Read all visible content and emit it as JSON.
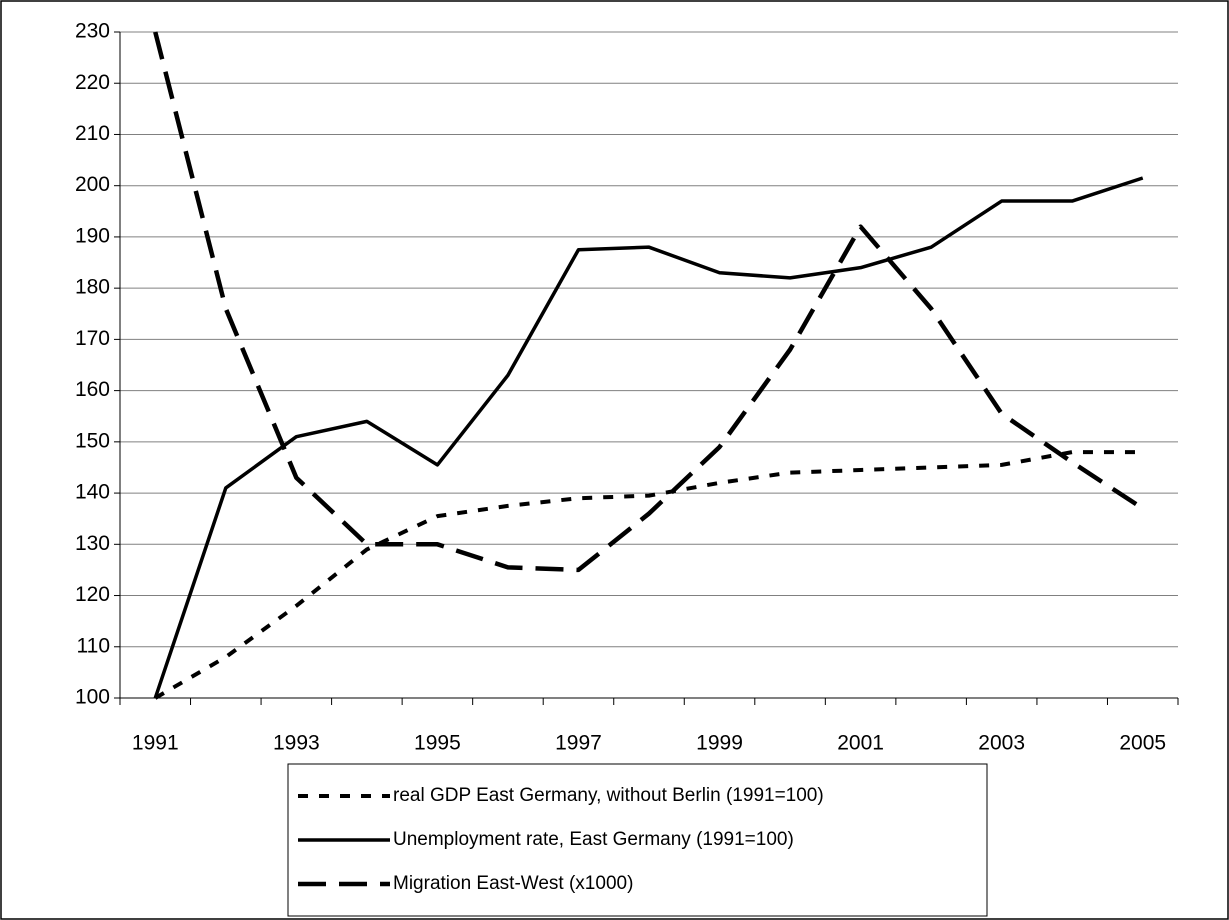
{
  "chart_data": {
    "type": "line",
    "categories": [
      "1991",
      null,
      "1993",
      null,
      "1995",
      null,
      "1997",
      null,
      "1999",
      null,
      "2001",
      null,
      "2003",
      null,
      "2005"
    ],
    "series": [
      {
        "name": "real GDP East Germany, without Berlin (1991=100)",
        "color": "#000000",
        "style": "dotted",
        "values": [
          100,
          108,
          118,
          129,
          135.5,
          137.5,
          139,
          139.5,
          142,
          144,
          144.5,
          145,
          145.5,
          148,
          148
        ]
      },
      {
        "name": "Unemployment rate, East Germany (1991=100)",
        "color": "#000000",
        "style": "solid",
        "values": [
          100,
          141,
          151,
          154,
          145.5,
          163,
          187.5,
          188,
          183,
          182,
          184,
          188,
          197,
          197,
          201.5
        ]
      },
      {
        "name": "Migration East-West (x1000)",
        "color": "#000000",
        "style": "dashed",
        "values": [
          230,
          176,
          143,
          130,
          130,
          125.5,
          125,
          136,
          149,
          168,
          192,
          176,
          155.5,
          146,
          137
        ]
      }
    ],
    "ylim": [
      100,
      230
    ],
    "yticks": [
      100,
      110,
      120,
      130,
      140,
      150,
      160,
      170,
      180,
      190,
      200,
      210,
      220,
      230
    ],
    "grid": true,
    "legend": "bottom"
  }
}
